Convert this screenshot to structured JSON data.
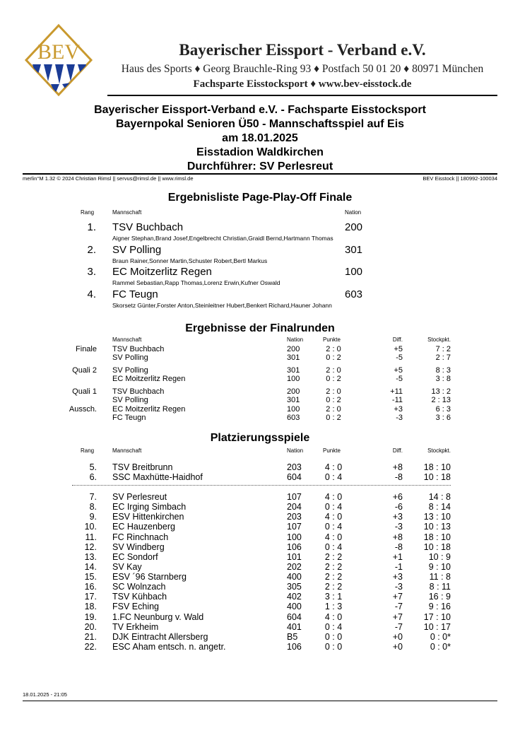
{
  "letterhead": {
    "logo_text": "BEV",
    "org": "Bayerischer Eissport - Verband e.V.",
    "address": "Haus des Sports ♦ Georg Brauchle-Ring 93 ♦ Postfach 50 01 20 ♦ 80971 München",
    "division": "Fachsparte Eisstocksport ♦ www.bev-eisstock.de",
    "colors": {
      "gold": "#c9992e",
      "blue": "#1b3c96"
    }
  },
  "title": {
    "line1": "Bayerischer Eissport-Verband e.V. - Fachsparte Eisstocksport",
    "line2": "Bayernpokal Senioren Ü50 - Mannschaftsspiel auf Eis",
    "line3": "am 18.01.2025",
    "line4": "Eisstadion Waldkirchen",
    "line5": "Durchführer: SV Perlesreut"
  },
  "meta": {
    "left": "merlin°M 1.32 © 2024 Christian Rimsl || servus@rimsl.de || www.rimsl.de",
    "right": "BEV Eisstock || 180992-100034"
  },
  "ranking": {
    "heading": "Ergebnisliste Page-Play-Off Finale",
    "headers": {
      "rang": "Rang",
      "team": "Mannschaft",
      "nation": "Nation"
    },
    "rows": [
      {
        "rank": "1.",
        "team": "TSV Buchbach",
        "nation": "200",
        "players": "Aigner Stephan,Brand Josef,Engelbrecht Christian,Graidl Bernd,Hartmann Thomas"
      },
      {
        "rank": "2.",
        "team": "SV Polling",
        "nation": "301",
        "players": "Braun Rainer,Sonner Martin,Schuster Robert,Bertl Markus"
      },
      {
        "rank": "3.",
        "team": "EC Moitzerlitz Regen",
        "nation": "100",
        "players": "Rammel Sebastian,Rapp Thomas,Lorenz Erwin,Kufner Oswald"
      },
      {
        "rank": "4.",
        "team": "FC Teugn",
        "nation": "603",
        "players": "Skorsetz Günter,Forster Anton,Steinleitner Hubert,Benkert Richard,Hauner Johann"
      }
    ]
  },
  "finals": {
    "heading": "Ergebnisse der Finalrunden",
    "headers": {
      "team": "Mannschaft",
      "nation": "Nation",
      "punkte": "Punkte",
      "diff": "Diff.",
      "stock": "Stockpkt."
    },
    "rows": [
      {
        "round": "Finale",
        "team": "TSV Buchbach",
        "nation": "200",
        "punkte": "2 : 0",
        "diff": "+5",
        "stock": "7 :  2"
      },
      {
        "round": "",
        "team": "SV Polling",
        "nation": "301",
        "punkte": "0 : 2",
        "diff": "-5",
        "stock": "2 :  7"
      },
      {
        "round": "Quali 2",
        "team": "SV Polling",
        "nation": "301",
        "punkte": "2 : 0",
        "diff": "+5",
        "stock": "8 :  3"
      },
      {
        "round": "",
        "team": "EC Moitzerlitz Regen",
        "nation": "100",
        "punkte": "0 : 2",
        "diff": "-5",
        "stock": "3 :  8"
      },
      {
        "round": "Quali 1",
        "team": "TSV Buchbach",
        "nation": "200",
        "punkte": "2 : 0",
        "diff": "+11",
        "stock": "13 :  2"
      },
      {
        "round": "",
        "team": "SV Polling",
        "nation": "301",
        "punkte": "0 : 2",
        "diff": "-11",
        "stock": "2 :  13"
      },
      {
        "round": "Aussch.",
        "team": "EC Moitzerlitz Regen",
        "nation": "100",
        "punkte": "2 : 0",
        "diff": "+3",
        "stock": "6 :  3"
      },
      {
        "round": "",
        "team": "FC Teugn",
        "nation": "603",
        "punkte": "0 : 2",
        "diff": "-3",
        "stock": "3 :  6"
      }
    ]
  },
  "placement": {
    "heading": "Platzierungsspiele",
    "headers": {
      "rang": "Rang",
      "team": "Mannschaft",
      "nation": "Nation",
      "punkte": "Punkte",
      "diff": "Diff.",
      "stock": "Stockpkt."
    },
    "rows": [
      {
        "rank": "5.",
        "team": "TSV Breitbrunn",
        "nation": "203",
        "punkte": "4 : 0",
        "diff": "+8",
        "stock": "18 : 10"
      },
      {
        "rank": "6.",
        "team": "SSC Maxhütte-Haidhof",
        "nation": "604",
        "punkte": "0 : 4",
        "diff": "-8",
        "stock": "10 : 18"
      },
      {
        "rank": "7.",
        "team": "SV Perlesreut",
        "nation": "107",
        "punkte": "4 : 0",
        "diff": "+6",
        "stock": "14 : 8"
      },
      {
        "rank": "8.",
        "team": "EC Irging Simbach",
        "nation": "204",
        "punkte": "0 : 4",
        "diff": "-6",
        "stock": "8 : 14"
      },
      {
        "rank": "9.",
        "team": "ESV Hittenkirchen",
        "nation": "203",
        "punkte": "4 : 0",
        "diff": "+3",
        "stock": "13 : 10"
      },
      {
        "rank": "10.",
        "team": "EC Hauzenberg",
        "nation": "107",
        "punkte": "0 : 4",
        "diff": "-3",
        "stock": "10 : 13"
      },
      {
        "rank": "11.",
        "team": "FC Rinchnach",
        "nation": "100",
        "punkte": "4 : 0",
        "diff": "+8",
        "stock": "18 : 10"
      },
      {
        "rank": "12.",
        "team": "SV Windberg",
        "nation": "106",
        "punkte": "0 : 4",
        "diff": "-8",
        "stock": "10 : 18"
      },
      {
        "rank": "13.",
        "team": "EC Sondorf",
        "nation": "101",
        "punkte": "2 : 2",
        "diff": "+1",
        "stock": "10 : 9"
      },
      {
        "rank": "14.",
        "team": "SV Kay",
        "nation": "202",
        "punkte": "2 : 2",
        "diff": "-1",
        "stock": "9 : 10"
      },
      {
        "rank": "15.",
        "team": "ESV ´96 Starnberg",
        "nation": "400",
        "punkte": "2 : 2",
        "diff": "+3",
        "stock": "11 : 8"
      },
      {
        "rank": "16.",
        "team": "SC Wolnzach",
        "nation": "305",
        "punkte": "2 : 2",
        "diff": "-3",
        "stock": "8 : 11"
      },
      {
        "rank": "17.",
        "team": "TSV Kühbach",
        "nation": "402",
        "punkte": "3 : 1",
        "diff": "+7",
        "stock": "16 : 9"
      },
      {
        "rank": "18.",
        "team": "FSV Eching",
        "nation": "400",
        "punkte": "1 : 3",
        "diff": "-7",
        "stock": "9 : 16"
      },
      {
        "rank": "19.",
        "team": "1.FC Neunburg v. Wald",
        "nation": "604",
        "punkte": "4 : 0",
        "diff": "+7",
        "stock": "17 : 10"
      },
      {
        "rank": "20.",
        "team": "TV Erkheim",
        "nation": "401",
        "punkte": "0 : 4",
        "diff": "-7",
        "stock": "10 : 17"
      },
      {
        "rank": "21.",
        "team": "DJK Eintracht Allersberg",
        "nation": "B5",
        "punkte": "0 : 0",
        "diff": "+0",
        "stock": "0 : 0*"
      },
      {
        "rank": "22.",
        "team": "ESC Aham entsch. n. angetr.",
        "nation": "106",
        "punkte": "0 : 0",
        "diff": "+0",
        "stock": "0 : 0*"
      }
    ]
  },
  "footer": {
    "timestamp": "18.01.2025 - 21:05"
  }
}
